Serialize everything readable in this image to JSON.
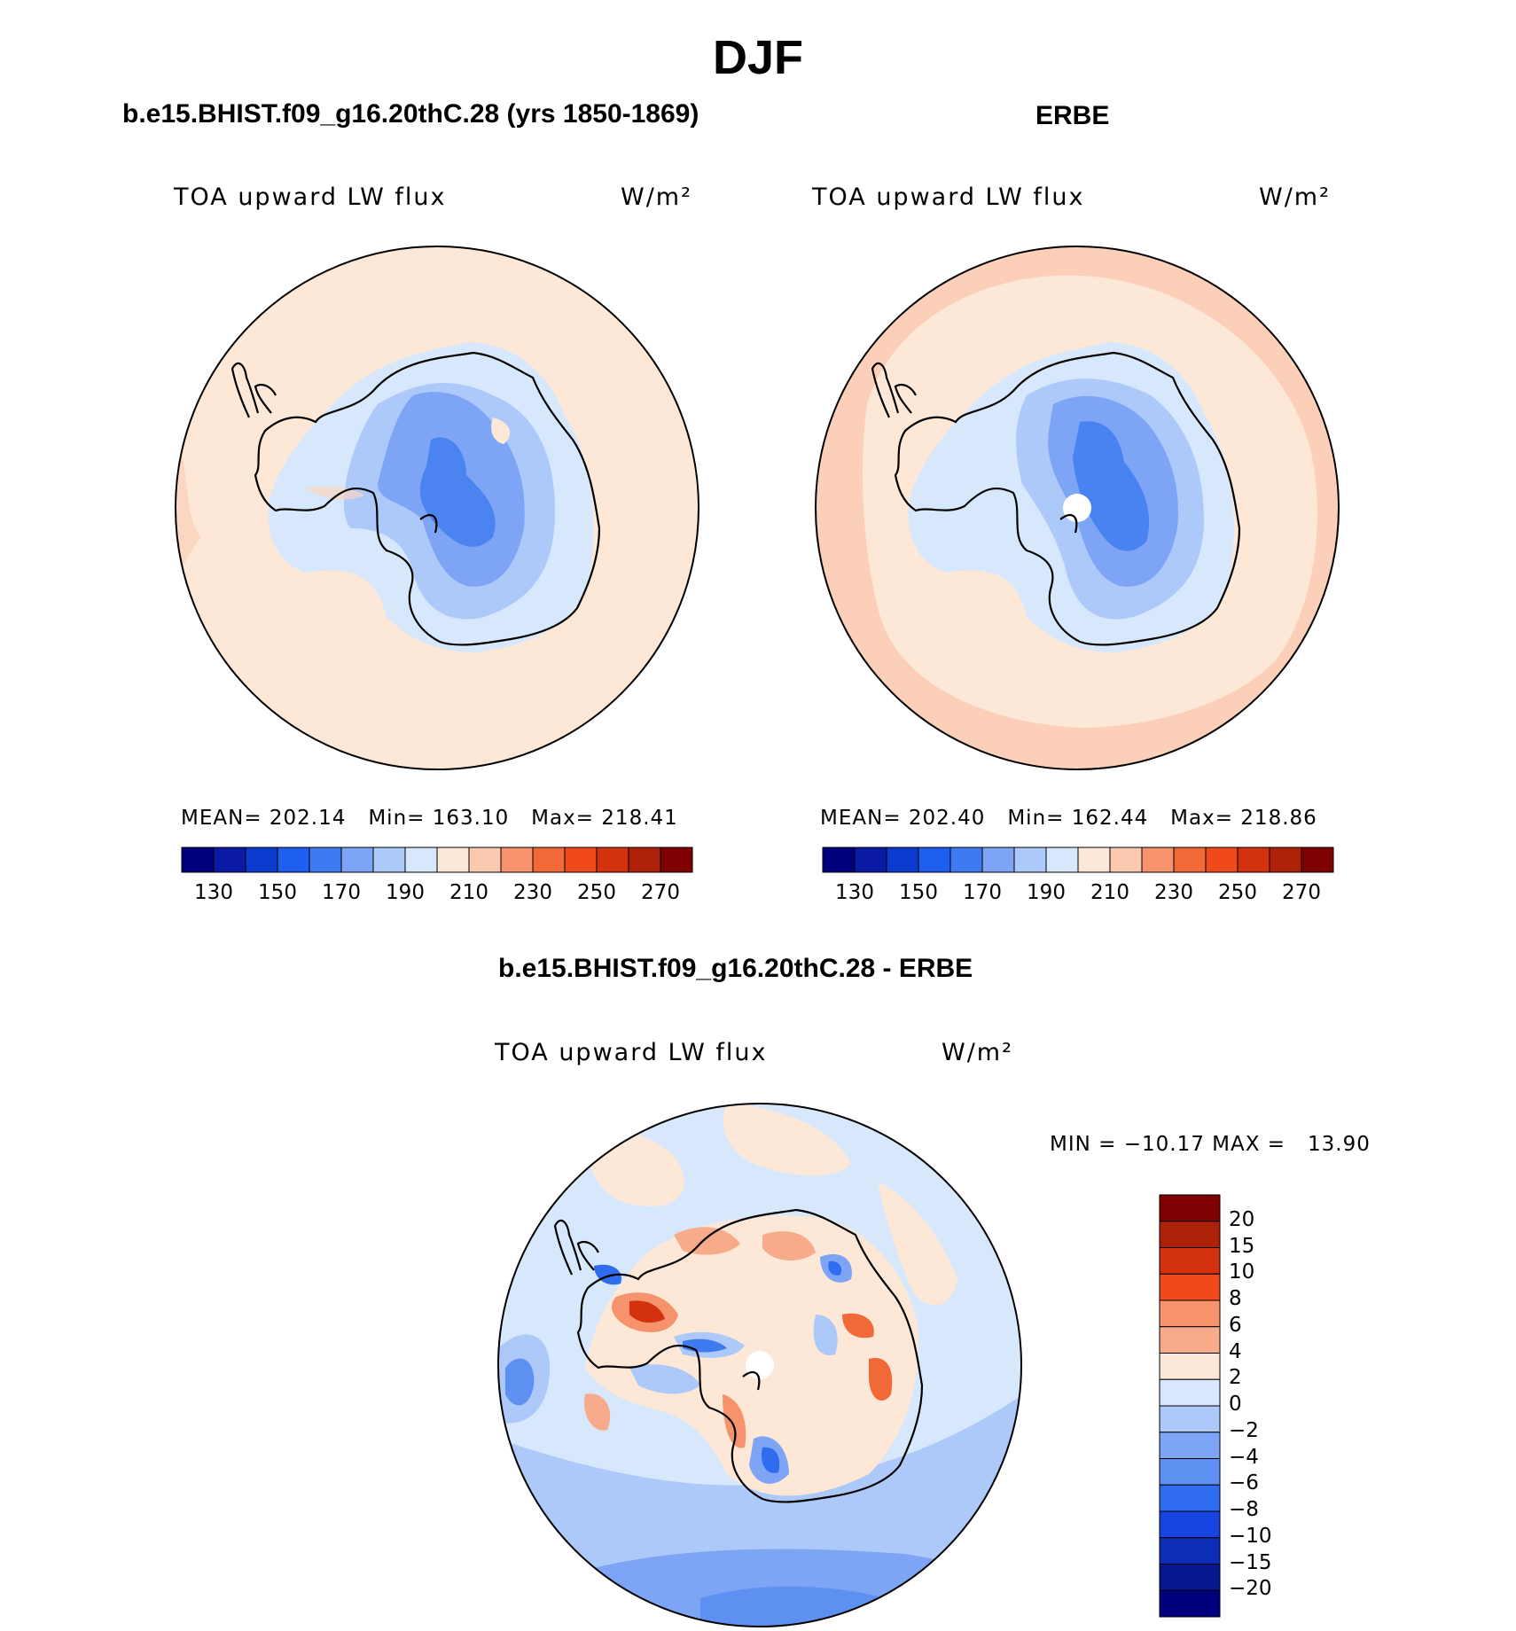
{
  "figure": {
    "title": "DJF"
  },
  "panels": [
    {
      "title": "b.e15.BHIST.f09_g16.20thC.28 (yrs 1850-1869)",
      "variable": "TOA upward LW flux",
      "units": "W/m²",
      "stats": {
        "mean_label": "MEAN=",
        "mean": "202.14",
        "min_label": "Min=",
        "min": "163.10",
        "max_label": "Max=",
        "max": "218.41"
      },
      "colorbar": {
        "ticks": [
          "130",
          "150",
          "170",
          "190",
          "210",
          "230",
          "250",
          "270"
        ],
        "colors": [
          "#00007f",
          "#0a1aa5",
          "#0b3cd0",
          "#1e5ff0",
          "#3f7bf0",
          "#7ea5f5",
          "#adc9fa",
          "#d8e8fc",
          "#fde8d8",
          "#fbc8b0",
          "#f6936d",
          "#f26938",
          "#f04a1c",
          "#d4310e",
          "#ad2109",
          "#7f0000"
        ]
      }
    },
    {
      "title": "ERBE",
      "variable": "TOA upward LW flux",
      "units": "W/m²",
      "stats": {
        "mean_label": "MEAN=",
        "mean": "202.40",
        "min_label": "Min=",
        "min": "162.44",
        "max_label": "Max=",
        "max": "218.86"
      },
      "colorbar": {
        "ticks": [
          "130",
          "150",
          "170",
          "190",
          "210",
          "230",
          "250",
          "270"
        ],
        "colors": [
          "#00007f",
          "#0a1aa5",
          "#0b3cd0",
          "#1e5ff0",
          "#3f7bf0",
          "#7ea5f5",
          "#adc9fa",
          "#d8e8fc",
          "#fde8d8",
          "#fbc8b0",
          "#f6936d",
          "#f26938",
          "#f04a1c",
          "#d4310e",
          "#ad2109",
          "#7f0000"
        ]
      }
    }
  ],
  "difference": {
    "title": "b.e15.BHIST.f09_g16.20thC.28 - ERBE",
    "variable": "TOA upward LW flux",
    "units": "W/m²",
    "stats": "MIN = −10.17 MAX =   13.90",
    "colorbar": {
      "ticks": [
        "20",
        "15",
        "10",
        "8",
        "6",
        "4",
        "2",
        "0",
        "−2",
        "−4",
        "−6",
        "−8",
        "−10",
        "−15",
        "−20"
      ],
      "colors": [
        "#7f0000",
        "#ad2109",
        "#d4310e",
        "#f04a1c",
        "#f6936d",
        "#f8ab8a",
        "#fde8d8",
        "#d8e8fc",
        "#adc9fa",
        "#7ea5f5",
        "#5e90f2",
        "#2f6cf0",
        "#1745e0",
        "#0b2eb5",
        "#06178f",
        "#00007f"
      ]
    }
  }
}
